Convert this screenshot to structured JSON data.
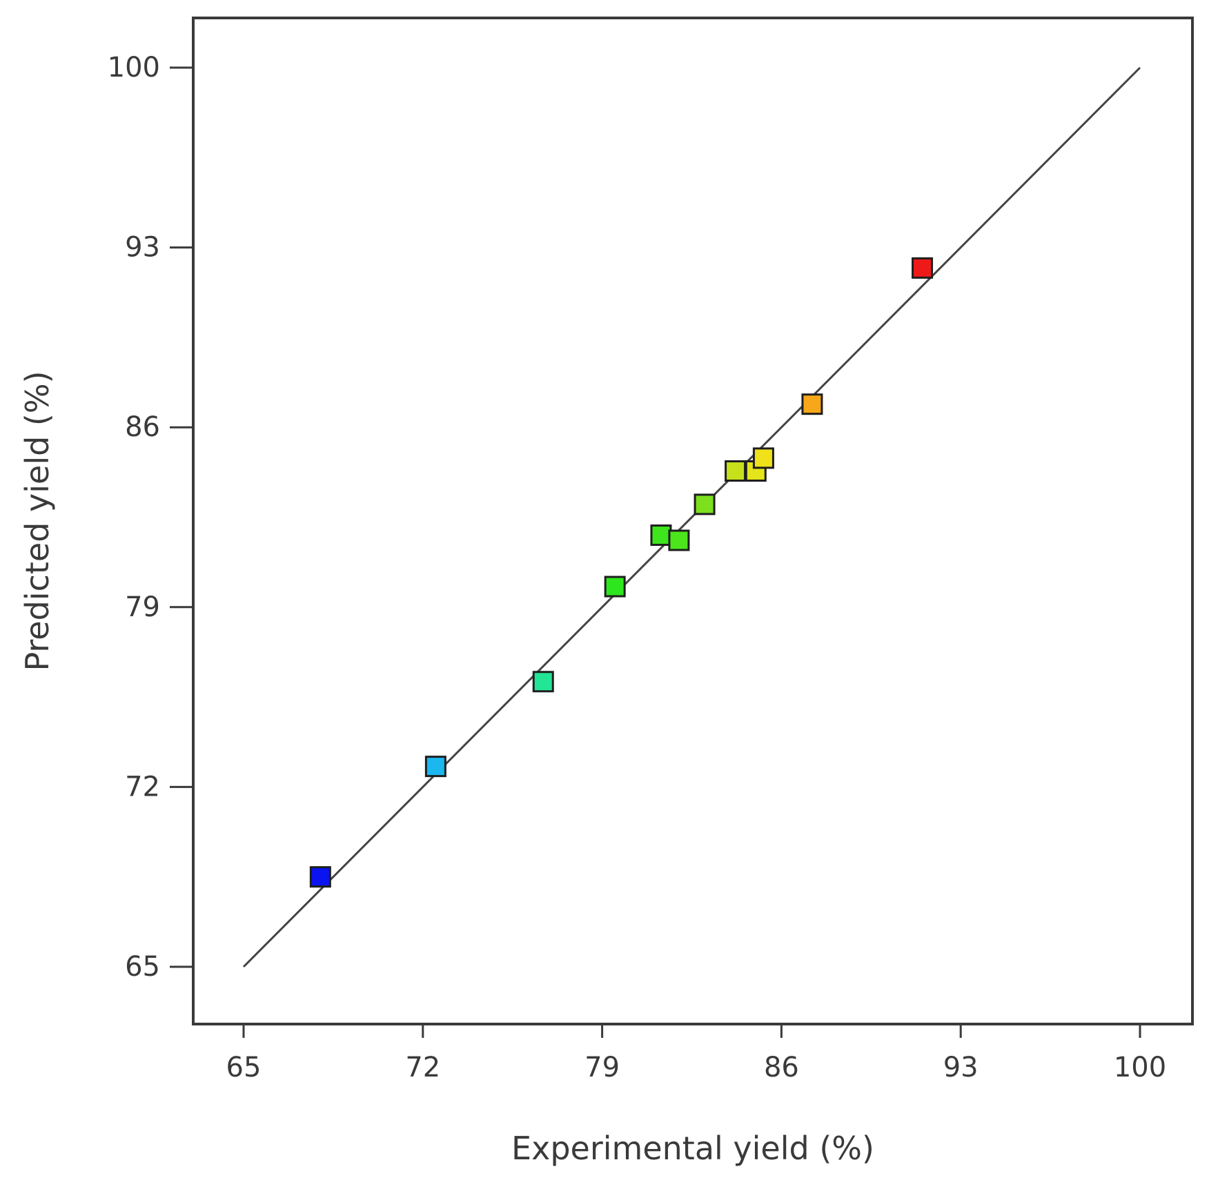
{
  "chart_data": {
    "type": "scatter",
    "title": "",
    "xlabel": "Experimental yield (%)",
    "ylabel": "Predicted  yield (%)",
    "xlim": [
      65,
      100
    ],
    "ylim": [
      65,
      100
    ],
    "xticks": [
      "65",
      "72",
      "79",
      "86",
      "93",
      "100"
    ],
    "yticks": [
      "65",
      "72",
      "79",
      "86",
      "93",
      "100"
    ],
    "grid": false,
    "legend": "none",
    "marker": "square",
    "reference_line": {
      "from": [
        65,
        65
      ],
      "to": [
        100,
        100
      ],
      "color": "#444444"
    },
    "points": [
      {
        "x": 68.0,
        "y": 68.5,
        "color": "#0a14f0"
      },
      {
        "x": 72.5,
        "y": 72.8,
        "color": "#1ab8ee"
      },
      {
        "x": 76.7,
        "y": 76.1,
        "color": "#22e696"
      },
      {
        "x": 79.5,
        "y": 79.8,
        "color": "#2ee61e"
      },
      {
        "x": 81.3,
        "y": 81.8,
        "color": "#3ee51c"
      },
      {
        "x": 82.0,
        "y": 81.6,
        "color": "#4ce51c"
      },
      {
        "x": 83.0,
        "y": 83.0,
        "color": "#7ce01c"
      },
      {
        "x": 84.2,
        "y": 84.3,
        "color": "#c6e01c"
      },
      {
        "x": 85.0,
        "y": 84.3,
        "color": "#e4e41a"
      },
      {
        "x": 85.3,
        "y": 84.8,
        "color": "#f0e21a"
      },
      {
        "x": 87.2,
        "y": 86.9,
        "color": "#f6a81a"
      },
      {
        "x": 91.5,
        "y": 92.2,
        "color": "#ee1a1a"
      }
    ]
  }
}
